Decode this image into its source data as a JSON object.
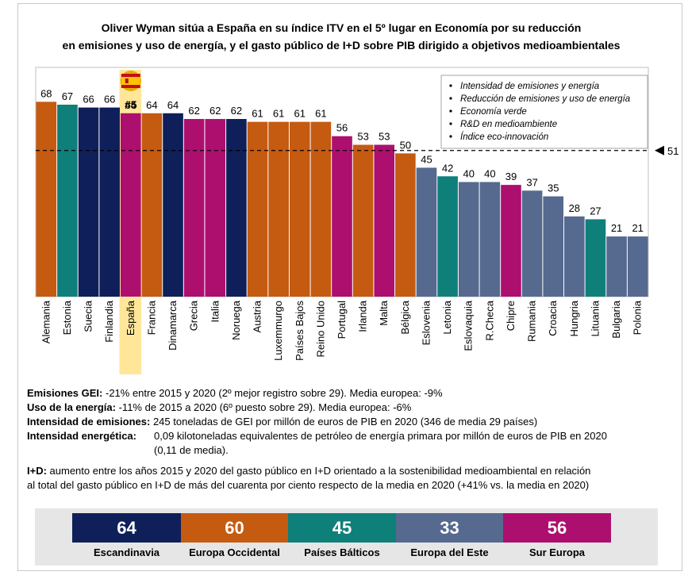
{
  "title_lines": [
    "Oliver Wyman sitúa a España en su índice ITV en el 5º lugar en Economía por su reducción",
    "en emisiones y uso de energía, y el gasto público de I+D sobre PIB dirigido a objetivos medioambientales"
  ],
  "colors": {
    "escandinavia": "#0f1f5a",
    "europa_occidental": "#c55a11",
    "baltico": "#0f7f7a",
    "este": "#56698f",
    "sur": "#ad0f6f",
    "highlight": "#ffe699"
  },
  "chart_data": {
    "type": "bar",
    "ylim": [
      0,
      80
    ],
    "categories": [
      "Alemania",
      "Estonia",
      "Suecia",
      "Finlandia",
      "España",
      "Francia",
      "Dinamarca",
      "Grecia",
      "Italia",
      "Noruega",
      "Austria",
      "Luxemmurgo",
      "Países Bajos",
      "Reino Unido",
      "Portugal",
      "Irlanda",
      "Malta",
      "Bélgica",
      "Eslovenia",
      "Letonia",
      "Eslovaquia",
      "R.Checa",
      "Chipre",
      "Rumania",
      "Croacia",
      "Hungria",
      "Lituania",
      "Bulgaria",
      "Polonia"
    ],
    "values": [
      68,
      67,
      66,
      66,
      64,
      64,
      64,
      62,
      62,
      62,
      61,
      61,
      61,
      61,
      56,
      53,
      53,
      50,
      45,
      42,
      40,
      40,
      39,
      37,
      35,
      28,
      27,
      21,
      21
    ],
    "regions": [
      "europa_occidental",
      "baltico",
      "escandinavia",
      "escandinavia",
      "sur",
      "europa_occidental",
      "escandinavia",
      "sur",
      "sur",
      "escandinavia",
      "europa_occidental",
      "europa_occidental",
      "europa_occidental",
      "europa_occidental",
      "sur",
      "europa_occidental",
      "sur",
      "europa_occidental",
      "este",
      "baltico",
      "este",
      "este",
      "sur",
      "este",
      "este",
      "este",
      "baltico",
      "este",
      "este"
    ],
    "highlight": {
      "category": "España",
      "rank_label": "#5"
    },
    "reference": {
      "value": 51,
      "label": "51",
      "style": "dashed"
    },
    "legend_items": [
      "Intensidad de emisiones y energía",
      "Reducción de emisiones y uso de energía",
      "Economía verde",
      "R&D en medioambiente",
      "Índice eco-innovación"
    ],
    "legend_position": "top-right"
  },
  "notes": {
    "emisiones": {
      "label": "Emisiones GEI:",
      "text": " -21% entre 2015 y 2020 (2º mejor registro sobre 29). Media europea: -9%"
    },
    "uso": {
      "label": "Uso de la energía:",
      "text": " -11% de 2015 a 2020 (6º puesto sobre 29). Media europea: -6%"
    },
    "intensidad_emisiones": {
      "label": "Intensidad de emisiones:",
      "text": " 245 toneladas de GEI por millón de euros de PIB en 2020 (346 de media 29 países)"
    },
    "intensidad_energetica": {
      "label": "Intensidad energética:",
      "text_line1": "0,09 kilotoneladas equivalentes de petróleo de energía primara por millón de euros de PIB en 2020",
      "text_line2": "(0,11 de media)."
    },
    "idp": {
      "label": "I+D:",
      "text_line1": " aumento entre los años 2015 y 2020 del gasto público en I+D orientado a la sostenibilidad medioambiental en relación",
      "text_line2": "al total del gasto público en I+D de más del cuarenta por ciento respecto de la media en 2020 (+41% vs. la media en 2020)"
    }
  },
  "regions_summary": [
    {
      "label": "Escandinavia",
      "value": "64",
      "color": "#0f1f5a"
    },
    {
      "label": "Europa Occidental",
      "value": "60",
      "color": "#c55a11"
    },
    {
      "label": "Países Bálticos",
      "value": "45",
      "color": "#0f7f7a"
    },
    {
      "label": "Europa del Este",
      "value": "33",
      "color": "#56698f"
    },
    {
      "label": "Sur Europa",
      "value": "56",
      "color": "#ad0f6f"
    }
  ]
}
